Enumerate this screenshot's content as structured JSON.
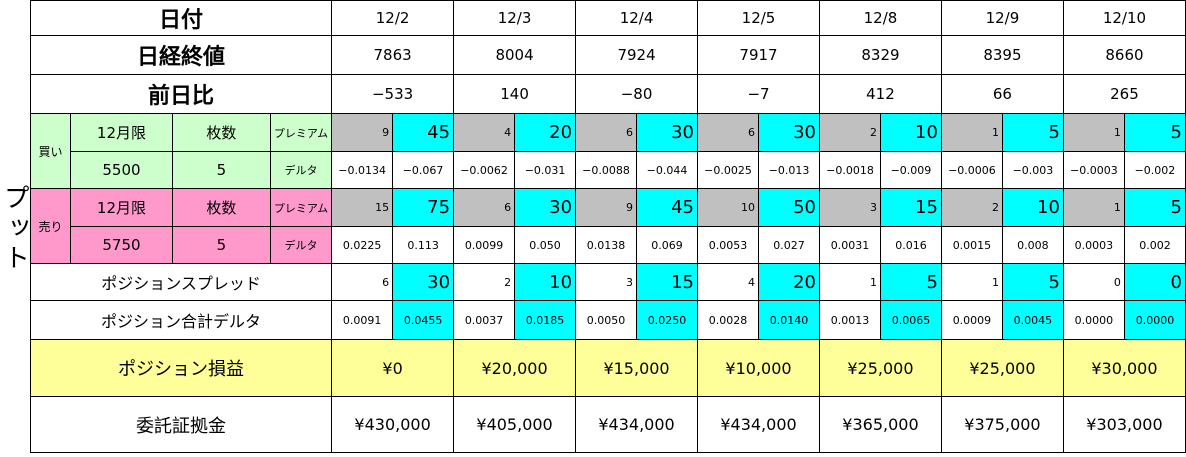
{
  "side_label": "プット",
  "headers": {
    "date": "日付",
    "close": "日経終値",
    "change": "前日比",
    "spread": "ポジションスプレッド",
    "total_delta": "ポジション合計デルタ",
    "pnl": "ポジション損益",
    "margin": "委託証拠金"
  },
  "buy": {
    "tag": "買い",
    "month": "12月限",
    "qty_label": "枚数",
    "premium_label": "プレミアム",
    "strike": "5500",
    "qty": "5",
    "delta_label": "デルタ"
  },
  "sell": {
    "tag": "売り",
    "month": "12月限",
    "qty_label": "枚数",
    "premium_label": "プレミアム",
    "strike": "5750",
    "qty": "5",
    "delta_label": "デルタ"
  },
  "days": [
    {
      "date": "12/2",
      "close": "7863",
      "change": "−533",
      "neg": true,
      "buy_prem": "9",
      "buy_prem_x": "45",
      "buy_delta": "−0.0134",
      "buy_delta_x": "−0.067",
      "sell_prem": "15",
      "sell_prem_x": "75",
      "sell_delta": "0.0225",
      "sell_delta_x": "0.113",
      "spread": "6",
      "spread_x": "30",
      "tdelta": "0.0091",
      "tdelta_x": "0.0455",
      "pnl": "¥0",
      "margin": "¥430,000"
    },
    {
      "date": "12/3",
      "close": "8004",
      "change": "140",
      "neg": false,
      "buy_prem": "4",
      "buy_prem_x": "20",
      "buy_delta": "−0.0062",
      "buy_delta_x": "−0.031",
      "sell_prem": "6",
      "sell_prem_x": "30",
      "sell_delta": "0.0099",
      "sell_delta_x": "0.050",
      "spread": "2",
      "spread_x": "10",
      "tdelta": "0.0037",
      "tdelta_x": "0.0185",
      "pnl": "¥20,000",
      "margin": "¥405,000"
    },
    {
      "date": "12/4",
      "close": "7924",
      "change": "−80",
      "neg": true,
      "buy_prem": "6",
      "buy_prem_x": "30",
      "buy_delta": "−0.0088",
      "buy_delta_x": "−0.044",
      "sell_prem": "9",
      "sell_prem_x": "45",
      "sell_delta": "0.0138",
      "sell_delta_x": "0.069",
      "spread": "3",
      "spread_x": "15",
      "tdelta": "0.0050",
      "tdelta_x": "0.0250",
      "pnl": "¥15,000",
      "margin": "¥434,000"
    },
    {
      "date": "12/5",
      "close": "7917",
      "change": "−7",
      "neg": true,
      "buy_prem": "6",
      "buy_prem_x": "30",
      "buy_delta": "−0.0025",
      "buy_delta_x": "−0.013",
      "sell_prem": "10",
      "sell_prem_x": "50",
      "sell_delta": "0.0053",
      "sell_delta_x": "0.027",
      "spread": "4",
      "spread_x": "20",
      "tdelta": "0.0028",
      "tdelta_x": "0.0140",
      "pnl": "¥10,000",
      "margin": "¥434,000"
    },
    {
      "date": "12/8",
      "close": "8329",
      "change": "412",
      "neg": false,
      "buy_prem": "2",
      "buy_prem_x": "10",
      "buy_delta": "−0.0018",
      "buy_delta_x": "−0.009",
      "sell_prem": "3",
      "sell_prem_x": "15",
      "sell_delta": "0.0031",
      "sell_delta_x": "0.016",
      "spread": "1",
      "spread_x": "5",
      "tdelta": "0.0013",
      "tdelta_x": "0.0065",
      "pnl": "¥25,000",
      "margin": "¥365,000"
    },
    {
      "date": "12/9",
      "close": "8395",
      "change": "66",
      "neg": false,
      "buy_prem": "1",
      "buy_prem_x": "5",
      "buy_delta": "−0.0006",
      "buy_delta_x": "−0.003",
      "sell_prem": "2",
      "sell_prem_x": "10",
      "sell_delta": "0.0015",
      "sell_delta_x": "0.008",
      "spread": "1",
      "spread_x": "5",
      "tdelta": "0.0009",
      "tdelta_x": "0.0045",
      "pnl": "¥25,000",
      "margin": "¥375,000"
    },
    {
      "date": "12/10",
      "close": "8660",
      "change": "265",
      "neg": false,
      "buy_prem": "1",
      "buy_prem_x": "5",
      "buy_delta": "−0.0003",
      "buy_delta_x": "−0.002",
      "sell_prem": "1",
      "sell_prem_x": "5",
      "sell_delta": "0.0003",
      "sell_delta_x": "0.002",
      "spread": "0",
      "spread_x": "0",
      "tdelta": "0.0000",
      "tdelta_x": "0.0000",
      "pnl": "¥30,000",
      "margin": "¥303,000"
    }
  ]
}
